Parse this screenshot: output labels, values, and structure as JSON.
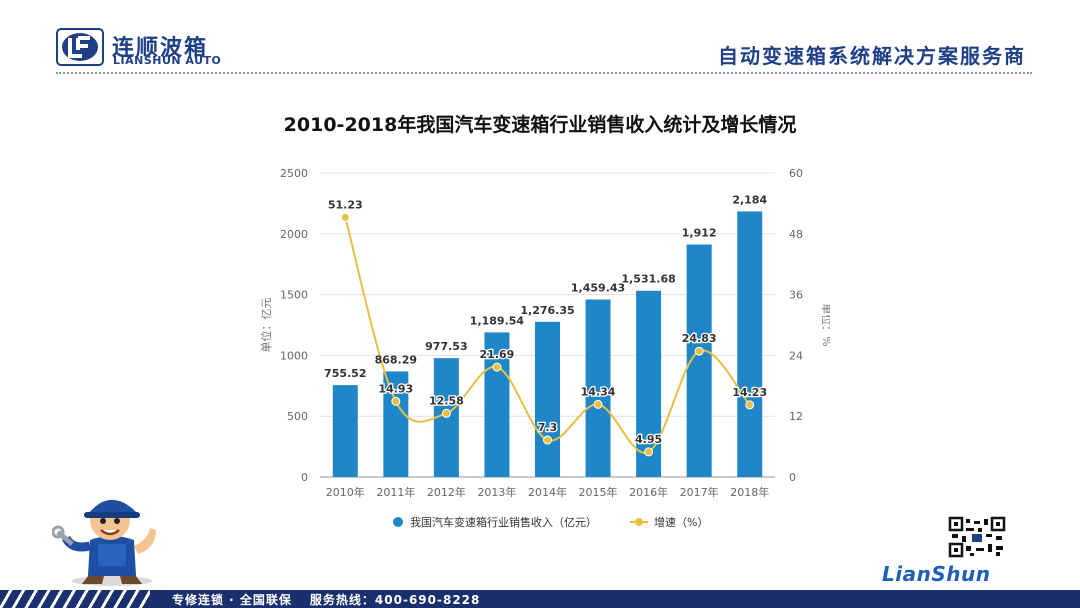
{
  "header": {
    "brand_cn": "连顺波箱",
    "brand_en": "LIANSHUN AUTO",
    "slogan": "自动变速箱系统解决方案服务商"
  },
  "footer": {
    "left_text": "专修连锁 · 全国联保",
    "hotline_text": "服务热线：400-690-8228"
  },
  "branding": {
    "script_logo": "LianShun",
    "colors": {
      "primary": "#1f3f86",
      "bar": "#1f86c8",
      "line": "#e8bf45"
    }
  },
  "chart_data": {
    "type": "bar",
    "title": "2010-2018年我国汽车变速箱行业销售收入统计及增长情况",
    "categories": [
      "2010年",
      "2011年",
      "2012年",
      "2013年",
      "2014年",
      "2015年",
      "2016年",
      "2017年",
      "2018年"
    ],
    "series": [
      {
        "name": "我国汽车变速箱行业销售收入（亿元）",
        "type": "bar",
        "axis": "left",
        "values": [
          755.52,
          868.29,
          977.53,
          1189.54,
          1276.35,
          1459.43,
          1531.68,
          1912,
          2184
        ],
        "labels": [
          "755.52",
          "868.29",
          "977.53",
          "1,189.54",
          "1,276.35",
          "1,459.43",
          "1,531.68",
          "1,912",
          "2,184"
        ]
      },
      {
        "name": "增速（%）",
        "type": "line",
        "axis": "right",
        "values": [
          51.23,
          14.93,
          12.58,
          21.69,
          7.3,
          14.34,
          4.95,
          24.83,
          14.23
        ],
        "labels": [
          "51.23",
          "14.93",
          "12.58",
          "21.69",
          "7.3",
          "14.34",
          "4.95",
          "24.83",
          "14.23"
        ]
      }
    ],
    "ylabel": "单位：亿元",
    "y2label": "单位：%",
    "ylim": [
      0,
      2500
    ],
    "y2lim": [
      0,
      60
    ],
    "yticks": [
      "0",
      "500",
      "1000",
      "1500",
      "2000",
      "2500"
    ],
    "y2ticks": [
      "0",
      "12",
      "24",
      "36",
      "48",
      "60"
    ],
    "grid": true,
    "legend": "bottom-center"
  }
}
